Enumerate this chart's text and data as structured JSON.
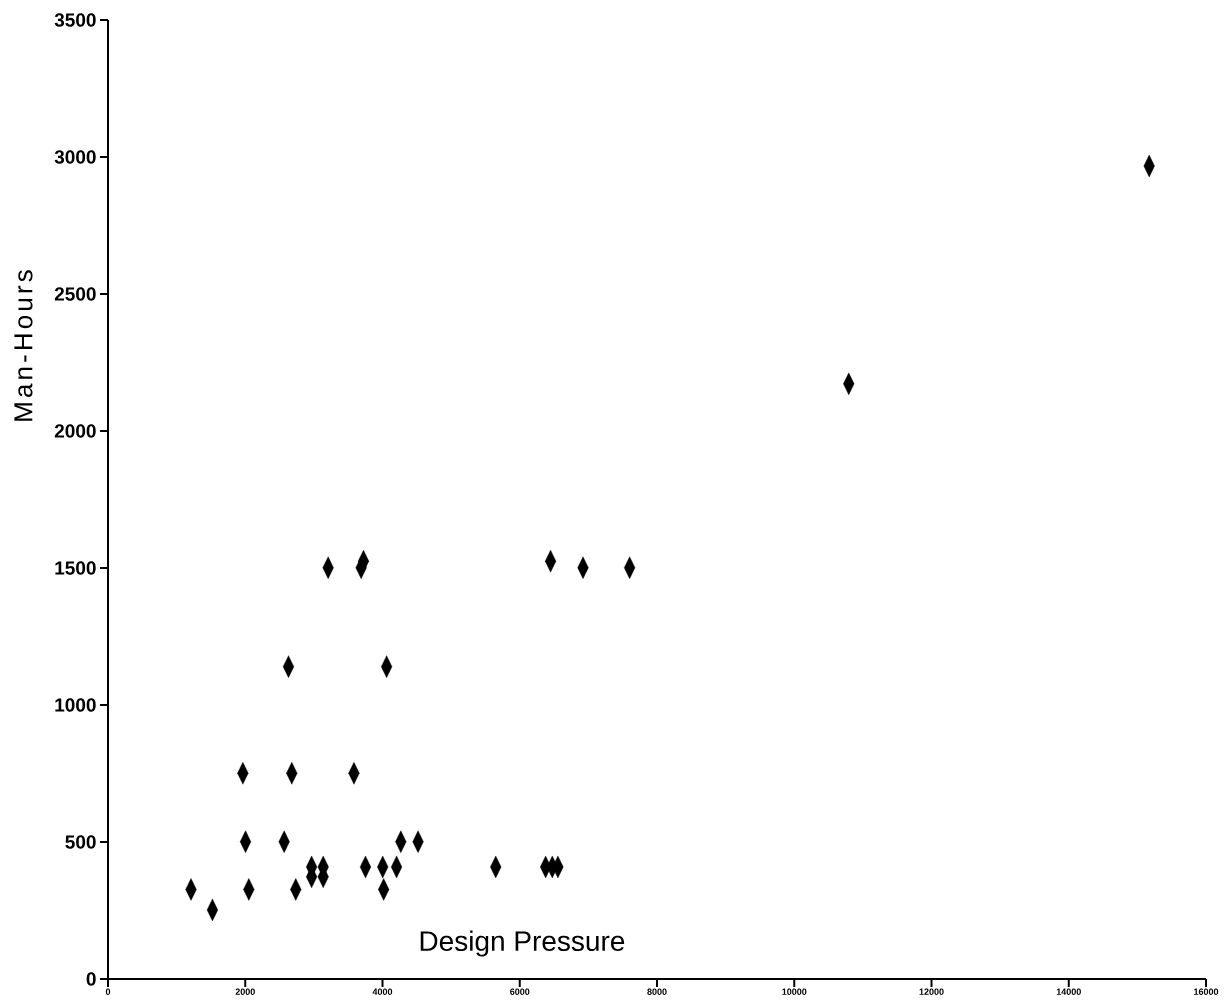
{
  "chart_data": {
    "type": "scatter",
    "xlabel": "Design Pressure",
    "ylabel": "Man-Hours",
    "color": "#000000",
    "marker": "diamond",
    "xlim": [
      0,
      16000
    ],
    "xticks": [
      0,
      2000,
      4000,
      6000,
      8000,
      10000,
      12000,
      14000,
      16000
    ],
    "ylim": [
      0,
      3500
    ],
    "yticks": [
      0,
      500,
      1000,
      1500,
      2000,
      2500,
      3000,
      3500
    ],
    "x": [
      1210,
      1522,
      1965,
      2004,
      2052,
      2630,
      2678,
      2567,
      2736,
      3208,
      2967,
      2967,
      3136,
      3136,
      3689,
      3723,
      3584,
      4060,
      3752,
      4003,
      4205,
      4017,
      4267,
      4518,
      6449,
      6922,
      7601,
      5650,
      6377,
      6474,
      6556,
      10794,
      15172
    ],
    "values": [
      327,
      252,
      751,
      501,
      327,
      1140,
      751,
      501,
      327,
      1501,
      409,
      373,
      409,
      373,
      1501,
      1525,
      751,
      1140,
      409,
      409,
      409,
      327,
      501,
      501,
      1525,
      1501,
      1501,
      409,
      409,
      409,
      409,
      2172,
      2967
    ]
  }
}
